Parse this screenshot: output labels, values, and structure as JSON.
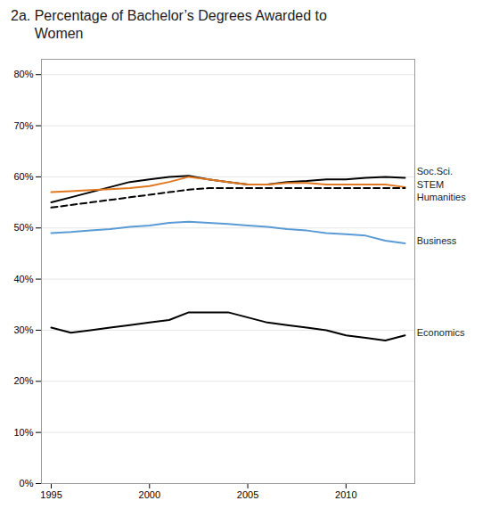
{
  "chart_data": {
    "type": "line",
    "title": "2a. Percentage of Bachelor’s Degrees Awarded to\n      Women",
    "x": [
      1995,
      1996,
      1997,
      1998,
      1999,
      2000,
      2001,
      2002,
      2003,
      2004,
      2005,
      2006,
      2007,
      2008,
      2009,
      2010,
      2011,
      2012,
      2013
    ],
    "series": [
      {
        "name": "Soc.Sci.",
        "color": "#000000",
        "line_style": "solid",
        "values": [
          55.0,
          56.0,
          57.0,
          58.0,
          59.0,
          59.5,
          60.0,
          60.2,
          59.5,
          59.0,
          58.5,
          58.5,
          59.0,
          59.2,
          59.5,
          59.5,
          59.8,
          60.0,
          59.8
        ]
      },
      {
        "name": "STEM",
        "color": "#E07820",
        "line_style": "solid",
        "values": [
          57.0,
          57.2,
          57.4,
          57.6,
          57.8,
          58.2,
          59.0,
          60.0,
          59.5,
          59.0,
          58.5,
          58.5,
          58.8,
          58.8,
          58.5,
          58.5,
          58.5,
          58.5,
          58.0
        ]
      },
      {
        "name": "Humanities",
        "color": "#000000",
        "line_style": "dashed",
        "values": [
          54.0,
          54.5,
          55.0,
          55.5,
          56.0,
          56.5,
          57.0,
          57.5,
          57.8,
          57.8,
          57.8,
          57.8,
          57.8,
          57.8,
          57.8,
          57.8,
          57.8,
          57.8,
          57.8
        ]
      },
      {
        "name": "Business",
        "color": "#5B9BD5",
        "line_style": "solid",
        "values": [
          49.0,
          49.2,
          49.5,
          49.8,
          50.2,
          50.5,
          51.0,
          51.2,
          51.0,
          50.8,
          50.5,
          50.2,
          49.8,
          49.5,
          49.0,
          48.8,
          48.5,
          47.5,
          47.0
        ]
      },
      {
        "name": "Economics",
        "color": "#000000",
        "line_style": "solid",
        "values": [
          30.5,
          29.5,
          30.0,
          30.5,
          31.0,
          31.5,
          32.0,
          33.5,
          33.5,
          33.5,
          32.5,
          31.5,
          31.0,
          30.5,
          30.0,
          29.0,
          28.5,
          28.0,
          29.0
        ]
      }
    ],
    "annotations": [
      {
        "text": "Soc.Sci.",
        "x": 2013.6,
        "y": 61.0
      },
      {
        "text": "STEM",
        "x": 2013.6,
        "y": 58.5
      },
      {
        "text": "Humanities",
        "x": 2013.6,
        "y": 56.0
      },
      {
        "text": "Business",
        "x": 2013.6,
        "y": 47.5
      },
      {
        "text": "Economics",
        "x": 2013.6,
        "y": 29.5
      }
    ],
    "xlim": [
      1994.5,
      2013.5
    ],
    "xticks": [
      1995,
      2000,
      2005,
      2010
    ],
    "ylim": [
      0,
      83
    ],
    "yticks": [
      {
        "value": 0,
        "label": "0%"
      },
      {
        "value": 10,
        "label": "10%"
      },
      {
        "value": 20,
        "label": "20%"
      },
      {
        "value": 30,
        "label": "30%"
      },
      {
        "value": 40,
        "label": "40%"
      },
      {
        "value": 50,
        "label": "50%"
      },
      {
        "value": 60,
        "label": "60%"
      },
      {
        "value": 70,
        "label": "70%"
      },
      {
        "value": 80,
        "label": "80%"
      }
    ],
    "grid": true
  }
}
